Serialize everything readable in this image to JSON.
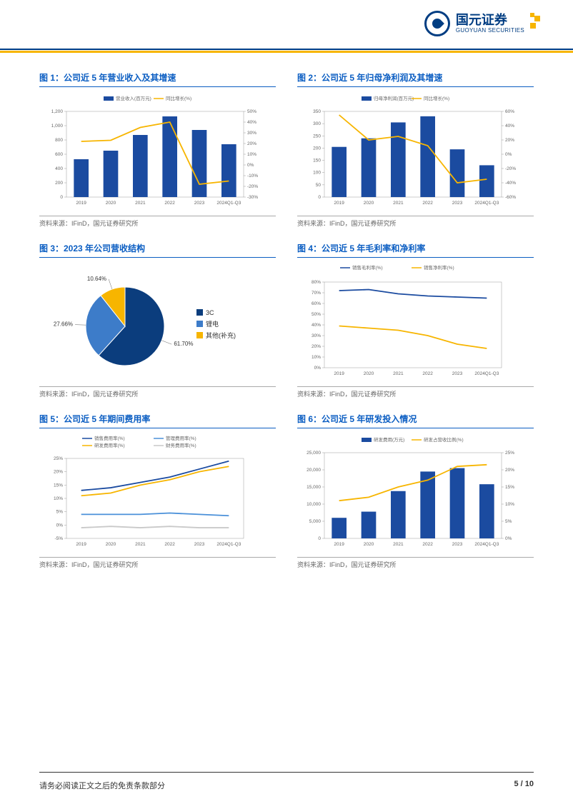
{
  "header": {
    "company_cn": "国元证券",
    "company_en": "GUOYUAN SECURITIES"
  },
  "colors": {
    "brand_blue": "#003d82",
    "brand_yellow": "#f7b500",
    "title_blue": "#0a5dc2",
    "bar_blue": "#1b4ba0",
    "line_yellow": "#f7b500",
    "line_blue": "#1b4ba0",
    "line_lightblue": "#4a90d9",
    "grid": "#cccccc",
    "axis": "#666666",
    "text": "#666666"
  },
  "charts": [
    {
      "id": 1,
      "title": "图 1：公司近 5 年营业收入及其增速",
      "type": "bar-line",
      "categories": [
        "2019",
        "2020",
        "2021",
        "2022",
        "2023",
        "2024Q1-Q3"
      ],
      "legend": [
        {
          "label": "营业收入(百万元)",
          "type": "bar",
          "color": "#1b4ba0"
        },
        {
          "label": "同比增长(%)",
          "type": "line",
          "color": "#f7b500"
        }
      ],
      "bars": [
        530,
        650,
        870,
        1130,
        940,
        740
      ],
      "line": [
        22,
        23,
        35,
        40,
        -18,
        -15
      ],
      "yleft": {
        "min": 0,
        "max": 1200,
        "step": 200
      },
      "yright": {
        "min": -30,
        "max": 50,
        "step": 10
      },
      "source": "资料来源：IFinD，国元证券研究所"
    },
    {
      "id": 2,
      "title": "图 2：公司近 5 年归母净利润及其增速",
      "type": "bar-line",
      "categories": [
        "2019",
        "2020",
        "2021",
        "2022",
        "2023",
        "2024Q1-Q3"
      ],
      "legend": [
        {
          "label": "归母净利润(百万元)",
          "type": "bar",
          "color": "#1b4ba0"
        },
        {
          "label": "同比增长(%)",
          "type": "line",
          "color": "#f7b500"
        }
      ],
      "bars": [
        205,
        240,
        305,
        330,
        195,
        130
      ],
      "line": [
        55,
        20,
        25,
        12,
        -40,
        -35
      ],
      "yleft": {
        "min": 0,
        "max": 350,
        "step": 50
      },
      "yright": {
        "min": -60,
        "max": 60,
        "step": 20
      },
      "source": "资料来源：IFinD，国元证券研究所"
    },
    {
      "id": 3,
      "title": "图 3：2023 年公司营收结构",
      "type": "pie",
      "slices": [
        {
          "label": "3C",
          "value": 61.7,
          "label_text": "61.70%",
          "color": "#0b3d7d"
        },
        {
          "label": "锂电",
          "value": 27.66,
          "label_text": "27.66%",
          "color": "#3d7cc9"
        },
        {
          "label": "其他(补充)",
          "value": 10.64,
          "label_text": "10.64%",
          "color": "#f7b500"
        }
      ],
      "source": "资料来源：IFinD，国元证券研究所"
    },
    {
      "id": 4,
      "title": "图 4：公司近 5 年毛利率和净利率",
      "type": "line",
      "categories": [
        "2019",
        "2020",
        "2021",
        "2022",
        "2023",
        "2024Q1-Q3"
      ],
      "legend": [
        {
          "label": "销售毛利率(%)",
          "type": "line",
          "color": "#1b4ba0"
        },
        {
          "label": "销售净利率(%)",
          "type": "line",
          "color": "#f7b500"
        }
      ],
      "lines": [
        [
          72,
          73,
          69,
          67,
          66,
          65
        ],
        [
          39,
          37,
          35,
          30,
          22,
          18
        ]
      ],
      "y": {
        "min": 0,
        "max": 80,
        "step": 10
      },
      "source": "资料来源：IFinD，国元证券研究所"
    },
    {
      "id": 5,
      "title": "图 5：公司近 5 年期间费用率",
      "type": "line",
      "categories": [
        "2019",
        "2020",
        "2021",
        "2022",
        "2023",
        "2024Q1-Q3"
      ],
      "legend": [
        {
          "label": "销售费用率(%)",
          "type": "line",
          "color": "#1b4ba0"
        },
        {
          "label": "管理费用率(%)",
          "type": "line",
          "color": "#4a90d9"
        },
        {
          "label": "研发费用率(%)",
          "type": "line",
          "color": "#f7b500"
        },
        {
          "label": "财务费用率(%)",
          "type": "line",
          "color": "#c9c9c9"
        }
      ],
      "lines": [
        [
          13,
          14,
          16,
          18,
          21,
          24
        ],
        [
          4,
          4,
          4,
          4.5,
          4,
          3.5
        ],
        [
          11,
          12,
          15,
          17,
          20,
          22
        ],
        [
          -1,
          -0.5,
          -1,
          -0.5,
          -1,
          -1
        ]
      ],
      "y": {
        "min": -5,
        "max": 25,
        "step": 5
      },
      "source": "资料来源：IFinD，国元证券研究所"
    },
    {
      "id": 6,
      "title": "图 6：公司近 5 年研发投入情况",
      "type": "bar-line",
      "categories": [
        "2019",
        "2020",
        "2021",
        "2022",
        "2023",
        "2024Q1-Q3"
      ],
      "legend": [
        {
          "label": "研发费用(万元)",
          "type": "bar",
          "color": "#1b4ba0"
        },
        {
          "label": "研发占营收比例(%)",
          "type": "line",
          "color": "#f7b500"
        }
      ],
      "bars": [
        6000,
        7800,
        13800,
        19500,
        20500,
        15800
      ],
      "line": [
        11,
        12,
        15,
        17,
        21,
        21.5
      ],
      "yleft": {
        "min": 0,
        "max": 25000,
        "step": 5000
      },
      "yright": {
        "min": 0,
        "max": 25,
        "step": 5
      },
      "source": "资料来源：IFinD，国元证券研究所"
    }
  ],
  "footer": {
    "disclaimer": "请务必阅读正文之后的免责条款部分",
    "page": "5 / 10"
  }
}
